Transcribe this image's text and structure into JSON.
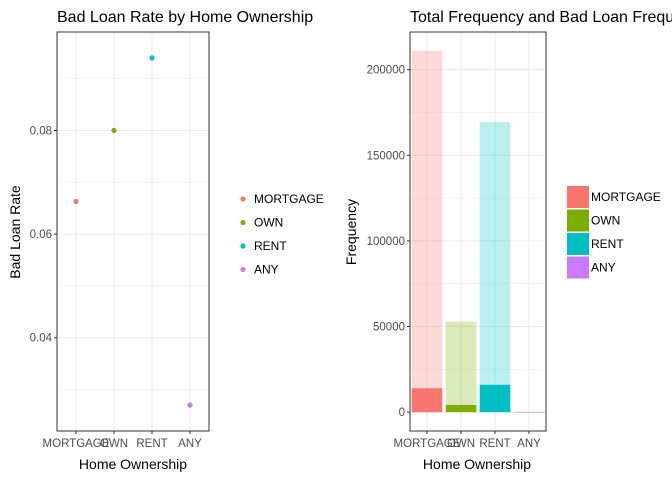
{
  "chart_data": [
    {
      "type": "scatter",
      "title": "Bad Loan Rate by Home Ownership",
      "xlabel": "Home Ownership",
      "ylabel": "Bad Loan Rate",
      "categories": [
        "MORTGAGE",
        "OWN",
        "RENT",
        "ANY"
      ],
      "values": [
        0.0663,
        0.08,
        0.094,
        0.027
      ],
      "colors": [
        "#F8766D",
        "#7CAE00",
        "#00BFC4",
        "#C77CFF"
      ],
      "ylim": [
        0.022,
        0.099
      ],
      "yticks": [
        0.04,
        0.06,
        0.08
      ],
      "ytick_labels": [
        "0.04",
        "0.06",
        "0.08"
      ],
      "grid": true,
      "legend": {
        "position": "right",
        "entries": [
          "MORTGAGE",
          "OWN",
          "RENT",
          "ANY"
        ]
      }
    },
    {
      "type": "bar",
      "title": "Total Frequency and Bad Loan Frequency by Home Ownership",
      "xlabel": "Home Ownership",
      "ylabel": "Frequency",
      "categories": [
        "MORTGAGE",
        "OWN",
        "RENT",
        "ANY"
      ],
      "series": [
        {
          "values": [
            211000,
            53000,
            169500,
            100
          ]
        },
        {
          "values": [
            14000,
            4200,
            16000,
            0
          ]
        }
      ],
      "colors": [
        "#F8766D",
        "#7CAE00",
        "#00BFC4",
        "#C77CFF"
      ],
      "ylim": [
        -11000,
        222000
      ],
      "yticks": [
        0,
        50000,
        100000,
        150000,
        200000
      ],
      "ytick_labels": [
        "0",
        "50000",
        "100000",
        "150000",
        "200000"
      ],
      "grid": true,
      "legend": {
        "position": "right",
        "entries": [
          "MORTGAGE",
          "OWN",
          "RENT",
          "ANY"
        ]
      }
    }
  ]
}
